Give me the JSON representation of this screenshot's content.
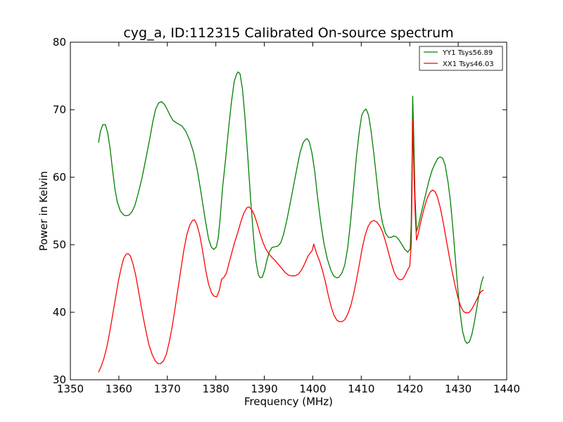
{
  "chart_data": {
    "type": "line",
    "title": "cyg_a, ID:112315 Calibrated On-source spectrum",
    "xlabel": "Frequency (MHz)",
    "ylabel": "Power in Kelvin",
    "xlim": [
      1350,
      1440
    ],
    "ylim": [
      30,
      80
    ],
    "xticks": [
      "1350",
      "1360",
      "1370",
      "1380",
      "1390",
      "1400",
      "1410",
      "1420",
      "1430",
      "1440"
    ],
    "yticks": [
      "30",
      "40",
      "50",
      "60",
      "70",
      "80"
    ],
    "legend_position": "top-right",
    "grid": false,
    "series": [
      {
        "name": "YY1 Tsys56.89",
        "color": "#008000",
        "points": [
          [
            1355.8,
            65.1
          ],
          [
            1356.2,
            66.8
          ],
          [
            1356.7,
            67.8
          ],
          [
            1357.2,
            67.8
          ],
          [
            1357.7,
            66.6
          ],
          [
            1358.2,
            64.2
          ],
          [
            1358.7,
            61.1
          ],
          [
            1359.2,
            58.2
          ],
          [
            1359.7,
            56.3
          ],
          [
            1360.3,
            55.0
          ],
          [
            1361.0,
            54.4
          ],
          [
            1361.5,
            54.3
          ],
          [
            1362.1,
            54.4
          ],
          [
            1362.7,
            54.9
          ],
          [
            1363.3,
            55.8
          ],
          [
            1364.0,
            57.6
          ],
          [
            1364.8,
            60.0
          ],
          [
            1365.6,
            62.9
          ],
          [
            1366.4,
            65.8
          ],
          [
            1367.0,
            68.2
          ],
          [
            1367.6,
            70.1
          ],
          [
            1368.2,
            71.0
          ],
          [
            1368.8,
            71.2
          ],
          [
            1369.4,
            70.8
          ],
          [
            1370.0,
            70.0
          ],
          [
            1370.6,
            69.1
          ],
          [
            1371.2,
            68.4
          ],
          [
            1372.0,
            68.0
          ],
          [
            1373.0,
            67.6
          ],
          [
            1373.8,
            66.8
          ],
          [
            1374.6,
            65.5
          ],
          [
            1375.4,
            63.7
          ],
          [
            1376.2,
            61.0
          ],
          [
            1377.0,
            57.5
          ],
          [
            1377.8,
            53.8
          ],
          [
            1378.5,
            50.9
          ],
          [
            1379.1,
            49.6
          ],
          [
            1379.6,
            49.3
          ],
          [
            1380.1,
            49.7
          ],
          [
            1380.5,
            51.0
          ],
          [
            1380.9,
            54.0
          ],
          [
            1381.4,
            58.5
          ],
          [
            1382.0,
            62.5
          ],
          [
            1382.6,
            67.0
          ],
          [
            1383.2,
            71.0
          ],
          [
            1383.8,
            74.2
          ],
          [
            1384.3,
            75.3
          ],
          [
            1384.6,
            75.6
          ],
          [
            1385.0,
            75.3
          ],
          [
            1385.5,
            73.0
          ],
          [
            1386.0,
            69.0
          ],
          [
            1386.6,
            63.0
          ],
          [
            1387.2,
            56.5
          ],
          [
            1387.8,
            51.0
          ],
          [
            1388.3,
            47.5
          ],
          [
            1388.8,
            45.5
          ],
          [
            1389.2,
            45.1
          ],
          [
            1389.6,
            45.2
          ],
          [
            1390.1,
            46.3
          ],
          [
            1390.6,
            47.9
          ],
          [
            1391.1,
            49.0
          ],
          [
            1391.6,
            49.6
          ],
          [
            1392.2,
            49.7
          ],
          [
            1392.8,
            49.8
          ],
          [
            1393.4,
            50.3
          ],
          [
            1394.0,
            51.6
          ],
          [
            1394.7,
            53.8
          ],
          [
            1395.4,
            56.4
          ],
          [
            1396.1,
            59.0
          ],
          [
            1396.8,
            61.6
          ],
          [
            1397.4,
            63.7
          ],
          [
            1398.0,
            65.1
          ],
          [
            1398.5,
            65.6
          ],
          [
            1398.9,
            65.7
          ],
          [
            1399.3,
            65.2
          ],
          [
            1399.8,
            63.7
          ],
          [
            1400.4,
            60.9
          ],
          [
            1401.0,
            57.0
          ],
          [
            1401.6,
            53.5
          ],
          [
            1402.3,
            50.2
          ],
          [
            1403.0,
            47.9
          ],
          [
            1403.7,
            46.3
          ],
          [
            1404.3,
            45.4
          ],
          [
            1404.9,
            45.1
          ],
          [
            1405.4,
            45.2
          ],
          [
            1406.0,
            45.8
          ],
          [
            1406.6,
            47.0
          ],
          [
            1407.2,
            49.5
          ],
          [
            1407.8,
            53.5
          ],
          [
            1408.4,
            58.2
          ],
          [
            1409.0,
            63.0
          ],
          [
            1409.6,
            66.8
          ],
          [
            1410.1,
            69.2
          ],
          [
            1410.6,
            69.9
          ],
          [
            1411.0,
            70.1
          ],
          [
            1411.5,
            69.2
          ],
          [
            1412.0,
            67.0
          ],
          [
            1412.6,
            63.5
          ],
          [
            1413.2,
            59.5
          ],
          [
            1413.8,
            55.6
          ],
          [
            1414.4,
            53.2
          ],
          [
            1415.0,
            51.7
          ],
          [
            1415.6,
            51.1
          ],
          [
            1416.2,
            51.1
          ],
          [
            1416.7,
            51.3
          ],
          [
            1417.2,
            51.2
          ],
          [
            1417.8,
            50.7
          ],
          [
            1418.4,
            50.0
          ],
          [
            1419.0,
            49.3
          ],
          [
            1419.6,
            48.9
          ],
          [
            1420.1,
            49.4
          ],
          [
            1420.3,
            53.0
          ],
          [
            1420.5,
            64.0
          ],
          [
            1420.6,
            72.0
          ],
          [
            1420.8,
            67.0
          ],
          [
            1421.1,
            57.0
          ],
          [
            1421.4,
            52.0
          ],
          [
            1421.8,
            52.9
          ],
          [
            1422.3,
            54.5
          ],
          [
            1422.8,
            56.0
          ],
          [
            1423.4,
            57.8
          ],
          [
            1424.0,
            59.6
          ],
          [
            1424.6,
            61.0
          ],
          [
            1425.2,
            62.0
          ],
          [
            1425.8,
            62.8
          ],
          [
            1426.3,
            63.0
          ],
          [
            1426.8,
            62.8
          ],
          [
            1427.3,
            61.8
          ],
          [
            1427.9,
            59.3
          ],
          [
            1428.4,
            56.4
          ],
          [
            1428.9,
            52.5
          ],
          [
            1429.4,
            48.0
          ],
          [
            1429.9,
            43.6
          ],
          [
            1430.4,
            39.8
          ],
          [
            1430.9,
            37.2
          ],
          [
            1431.4,
            35.8
          ],
          [
            1431.8,
            35.4
          ],
          [
            1432.3,
            35.6
          ],
          [
            1432.8,
            36.7
          ],
          [
            1433.3,
            38.4
          ],
          [
            1433.8,
            40.5
          ],
          [
            1434.3,
            42.7
          ],
          [
            1434.8,
            44.4
          ],
          [
            1435.2,
            45.3
          ]
        ]
      },
      {
        "name": "XX1 Tsys46.03",
        "color": "#ff0000",
        "points": [
          [
            1355.8,
            31.1
          ],
          [
            1356.3,
            31.9
          ],
          [
            1356.9,
            33.1
          ],
          [
            1357.5,
            34.8
          ],
          [
            1358.1,
            37.0
          ],
          [
            1358.7,
            39.5
          ],
          [
            1359.3,
            42.1
          ],
          [
            1359.9,
            44.6
          ],
          [
            1360.5,
            46.6
          ],
          [
            1361.0,
            48.0
          ],
          [
            1361.5,
            48.6
          ],
          [
            1361.9,
            48.7
          ],
          [
            1362.4,
            48.3
          ],
          [
            1362.9,
            47.2
          ],
          [
            1363.5,
            45.4
          ],
          [
            1364.1,
            43.0
          ],
          [
            1364.8,
            40.1
          ],
          [
            1365.5,
            37.5
          ],
          [
            1366.2,
            35.2
          ],
          [
            1366.9,
            33.7
          ],
          [
            1367.5,
            32.8
          ],
          [
            1368.1,
            32.4
          ],
          [
            1368.6,
            32.4
          ],
          [
            1369.2,
            32.8
          ],
          [
            1369.8,
            33.8
          ],
          [
            1370.4,
            35.6
          ],
          [
            1371.0,
            37.9
          ],
          [
            1371.6,
            40.6
          ],
          [
            1372.2,
            43.5
          ],
          [
            1372.8,
            46.4
          ],
          [
            1373.4,
            49.2
          ],
          [
            1374.0,
            51.4
          ],
          [
            1374.6,
            52.9
          ],
          [
            1375.2,
            53.6
          ],
          [
            1375.6,
            53.7
          ],
          [
            1376.1,
            53.0
          ],
          [
            1376.7,
            51.4
          ],
          [
            1377.3,
            49.0
          ],
          [
            1377.9,
            46.3
          ],
          [
            1378.5,
            44.2
          ],
          [
            1379.1,
            42.9
          ],
          [
            1379.6,
            42.4
          ],
          [
            1380.2,
            42.3
          ],
          [
            1380.7,
            43.2
          ],
          [
            1381.2,
            44.9
          ],
          [
            1381.7,
            45.2
          ],
          [
            1382.2,
            45.8
          ],
          [
            1382.8,
            47.5
          ],
          [
            1383.4,
            49.1
          ],
          [
            1384.0,
            50.6
          ],
          [
            1384.6,
            52.0
          ],
          [
            1385.2,
            53.5
          ],
          [
            1385.8,
            54.7
          ],
          [
            1386.4,
            55.5
          ],
          [
            1386.8,
            55.6
          ],
          [
            1387.3,
            55.3
          ],
          [
            1387.9,
            54.5
          ],
          [
            1388.5,
            53.2
          ],
          [
            1389.1,
            51.7
          ],
          [
            1389.7,
            50.4
          ],
          [
            1390.3,
            49.4
          ],
          [
            1390.9,
            48.7
          ],
          [
            1391.5,
            48.2
          ],
          [
            1392.2,
            47.7
          ],
          [
            1392.9,
            47.1
          ],
          [
            1393.6,
            46.5
          ],
          [
            1394.3,
            45.9
          ],
          [
            1395.0,
            45.5
          ],
          [
            1395.7,
            45.4
          ],
          [
            1396.4,
            45.4
          ],
          [
            1397.1,
            45.7
          ],
          [
            1397.8,
            46.4
          ],
          [
            1398.4,
            47.3
          ],
          [
            1399.0,
            48.3
          ],
          [
            1399.5,
            48.8
          ],
          [
            1399.9,
            49.2
          ],
          [
            1400.2,
            50.1
          ],
          [
            1400.5,
            49.4
          ],
          [
            1400.9,
            48.5
          ],
          [
            1401.4,
            47.6
          ],
          [
            1402.0,
            46.2
          ],
          [
            1402.6,
            44.5
          ],
          [
            1403.2,
            42.5
          ],
          [
            1403.8,
            40.8
          ],
          [
            1404.4,
            39.5
          ],
          [
            1405.0,
            38.8
          ],
          [
            1405.5,
            38.6
          ],
          [
            1406.0,
            38.6
          ],
          [
            1406.6,
            38.9
          ],
          [
            1407.2,
            39.7
          ],
          [
            1407.8,
            40.9
          ],
          [
            1408.4,
            42.6
          ],
          [
            1409.0,
            44.7
          ],
          [
            1409.6,
            47.1
          ],
          [
            1410.2,
            49.5
          ],
          [
            1410.8,
            51.4
          ],
          [
            1411.4,
            52.7
          ],
          [
            1412.0,
            53.4
          ],
          [
            1412.6,
            53.6
          ],
          [
            1413.2,
            53.4
          ],
          [
            1413.8,
            52.8
          ],
          [
            1414.4,
            51.9
          ],
          [
            1415.0,
            50.5
          ],
          [
            1415.6,
            48.9
          ],
          [
            1416.2,
            47.3
          ],
          [
            1416.8,
            45.9
          ],
          [
            1417.4,
            45.1
          ],
          [
            1418.0,
            44.8
          ],
          [
            1418.5,
            44.9
          ],
          [
            1419.0,
            45.4
          ],
          [
            1419.5,
            46.2
          ],
          [
            1420.0,
            46.8
          ],
          [
            1420.3,
            50.0
          ],
          [
            1420.5,
            60.0
          ],
          [
            1420.6,
            68.5
          ],
          [
            1420.8,
            63.0
          ],
          [
            1421.1,
            55.0
          ],
          [
            1421.4,
            50.7
          ],
          [
            1421.8,
            51.8
          ],
          [
            1422.4,
            53.8
          ],
          [
            1423.0,
            55.5
          ],
          [
            1423.6,
            56.9
          ],
          [
            1424.2,
            57.8
          ],
          [
            1424.7,
            58.1
          ],
          [
            1425.2,
            57.9
          ],
          [
            1425.7,
            57.1
          ],
          [
            1426.3,
            55.5
          ],
          [
            1426.9,
            53.3
          ],
          [
            1427.5,
            50.9
          ],
          [
            1428.1,
            48.5
          ],
          [
            1428.7,
            46.2
          ],
          [
            1429.3,
            44.1
          ],
          [
            1429.9,
            42.3
          ],
          [
            1430.5,
            40.9
          ],
          [
            1431.1,
            40.1
          ],
          [
            1431.7,
            39.9
          ],
          [
            1432.3,
            40.0
          ],
          [
            1432.9,
            40.6
          ],
          [
            1433.5,
            41.4
          ],
          [
            1434.1,
            42.3
          ],
          [
            1434.6,
            43.0
          ],
          [
            1435.2,
            43.3
          ]
        ]
      }
    ]
  }
}
